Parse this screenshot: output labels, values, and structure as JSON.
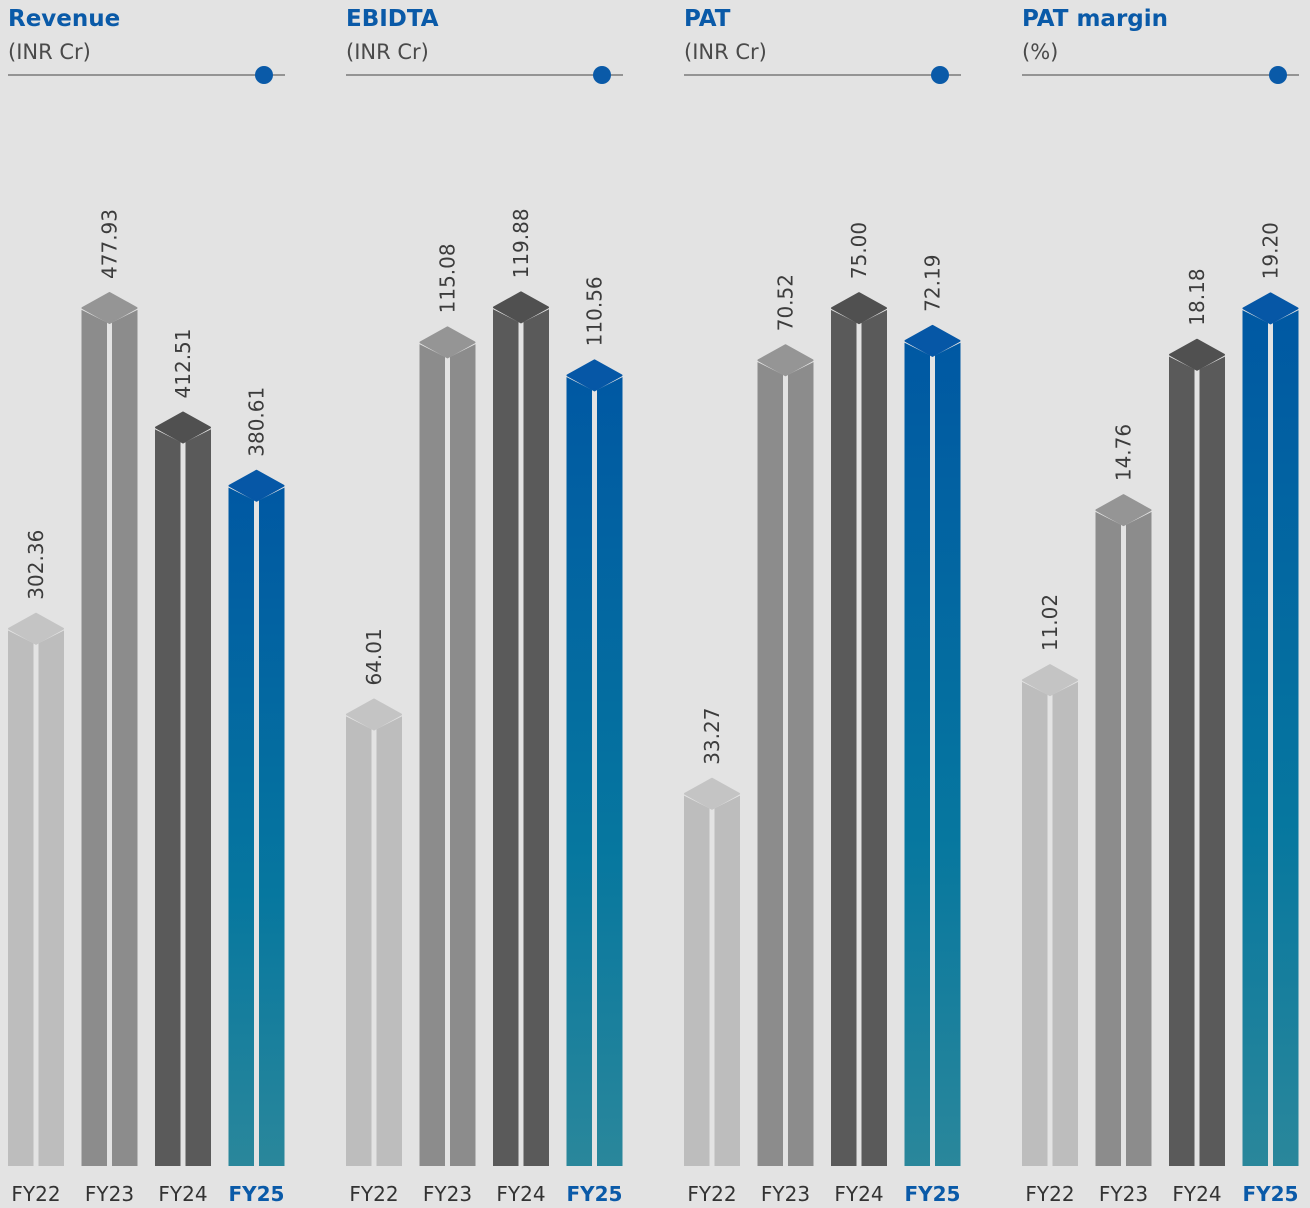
{
  "colors": {
    "background": "#e3e3e3",
    "title": "#0a5aa8",
    "fy22": "#bdbdbd",
    "fy22_top": "#c4c4c4",
    "fy23": "#8c8c8c",
    "fy23_top": "#959595",
    "fy24": "#5a5a5a",
    "fy24_top": "#505050",
    "fy25_top": "#0657a6",
    "fy25_gradient_top": "#0058a3",
    "fy25_gradient_mid": "#06779f",
    "fy25_gradient_bottom": "#2a879b",
    "value_text": "#3c3c3c",
    "tick_text": "#333333",
    "highlight_tick": "#0a5aa8",
    "rule": "#7a7a7a",
    "rule_dot": "#0a5aa8"
  },
  "chart_data": [
    {
      "type": "bar",
      "title": "Revenue",
      "unit": "(INR Cr)",
      "categories": [
        "FY22",
        "FY23",
        "FY24",
        "FY25"
      ],
      "values": [
        302.36,
        477.93,
        412.51,
        380.61
      ],
      "value_labels": [
        "302.36",
        "477.93",
        "412.51",
        "380.61"
      ],
      "highlight": "FY25",
      "ylim": [
        0,
        525
      ]
    },
    {
      "type": "bar",
      "title": "EBIDTA",
      "unit": "(INR Cr)",
      "categories": [
        "FY22",
        "FY23",
        "FY24",
        "FY25"
      ],
      "values": [
        64.01,
        115.08,
        119.88,
        110.56
      ],
      "value_labels": [
        "64.01",
        "115.08",
        "119.88",
        "110.56"
      ],
      "highlight": "FY25",
      "ylim": [
        0,
        131.6
      ]
    },
    {
      "type": "bar",
      "title": "PAT",
      "unit": "(INR Cr)",
      "categories": [
        "FY22",
        "FY23",
        "FY24",
        "FY25"
      ],
      "values": [
        33.27,
        70.52,
        75.0,
        72.19
      ],
      "value_labels": [
        "33.27",
        "70.52",
        "75.00",
        "72.19"
      ],
      "highlight": "FY25",
      "ylim": [
        0,
        82.4
      ]
    },
    {
      "type": "bar",
      "title": "PAT margin",
      "unit": "(%)",
      "categories": [
        "FY22",
        "FY23",
        "FY24",
        "FY25"
      ],
      "values": [
        11.02,
        14.76,
        18.18,
        19.2
      ],
      "value_labels": [
        "11.02",
        "14.76",
        "18.18",
        "19.20"
      ],
      "highlight": "FY25",
      "ylim": [
        0,
        21.1
      ]
    }
  ]
}
